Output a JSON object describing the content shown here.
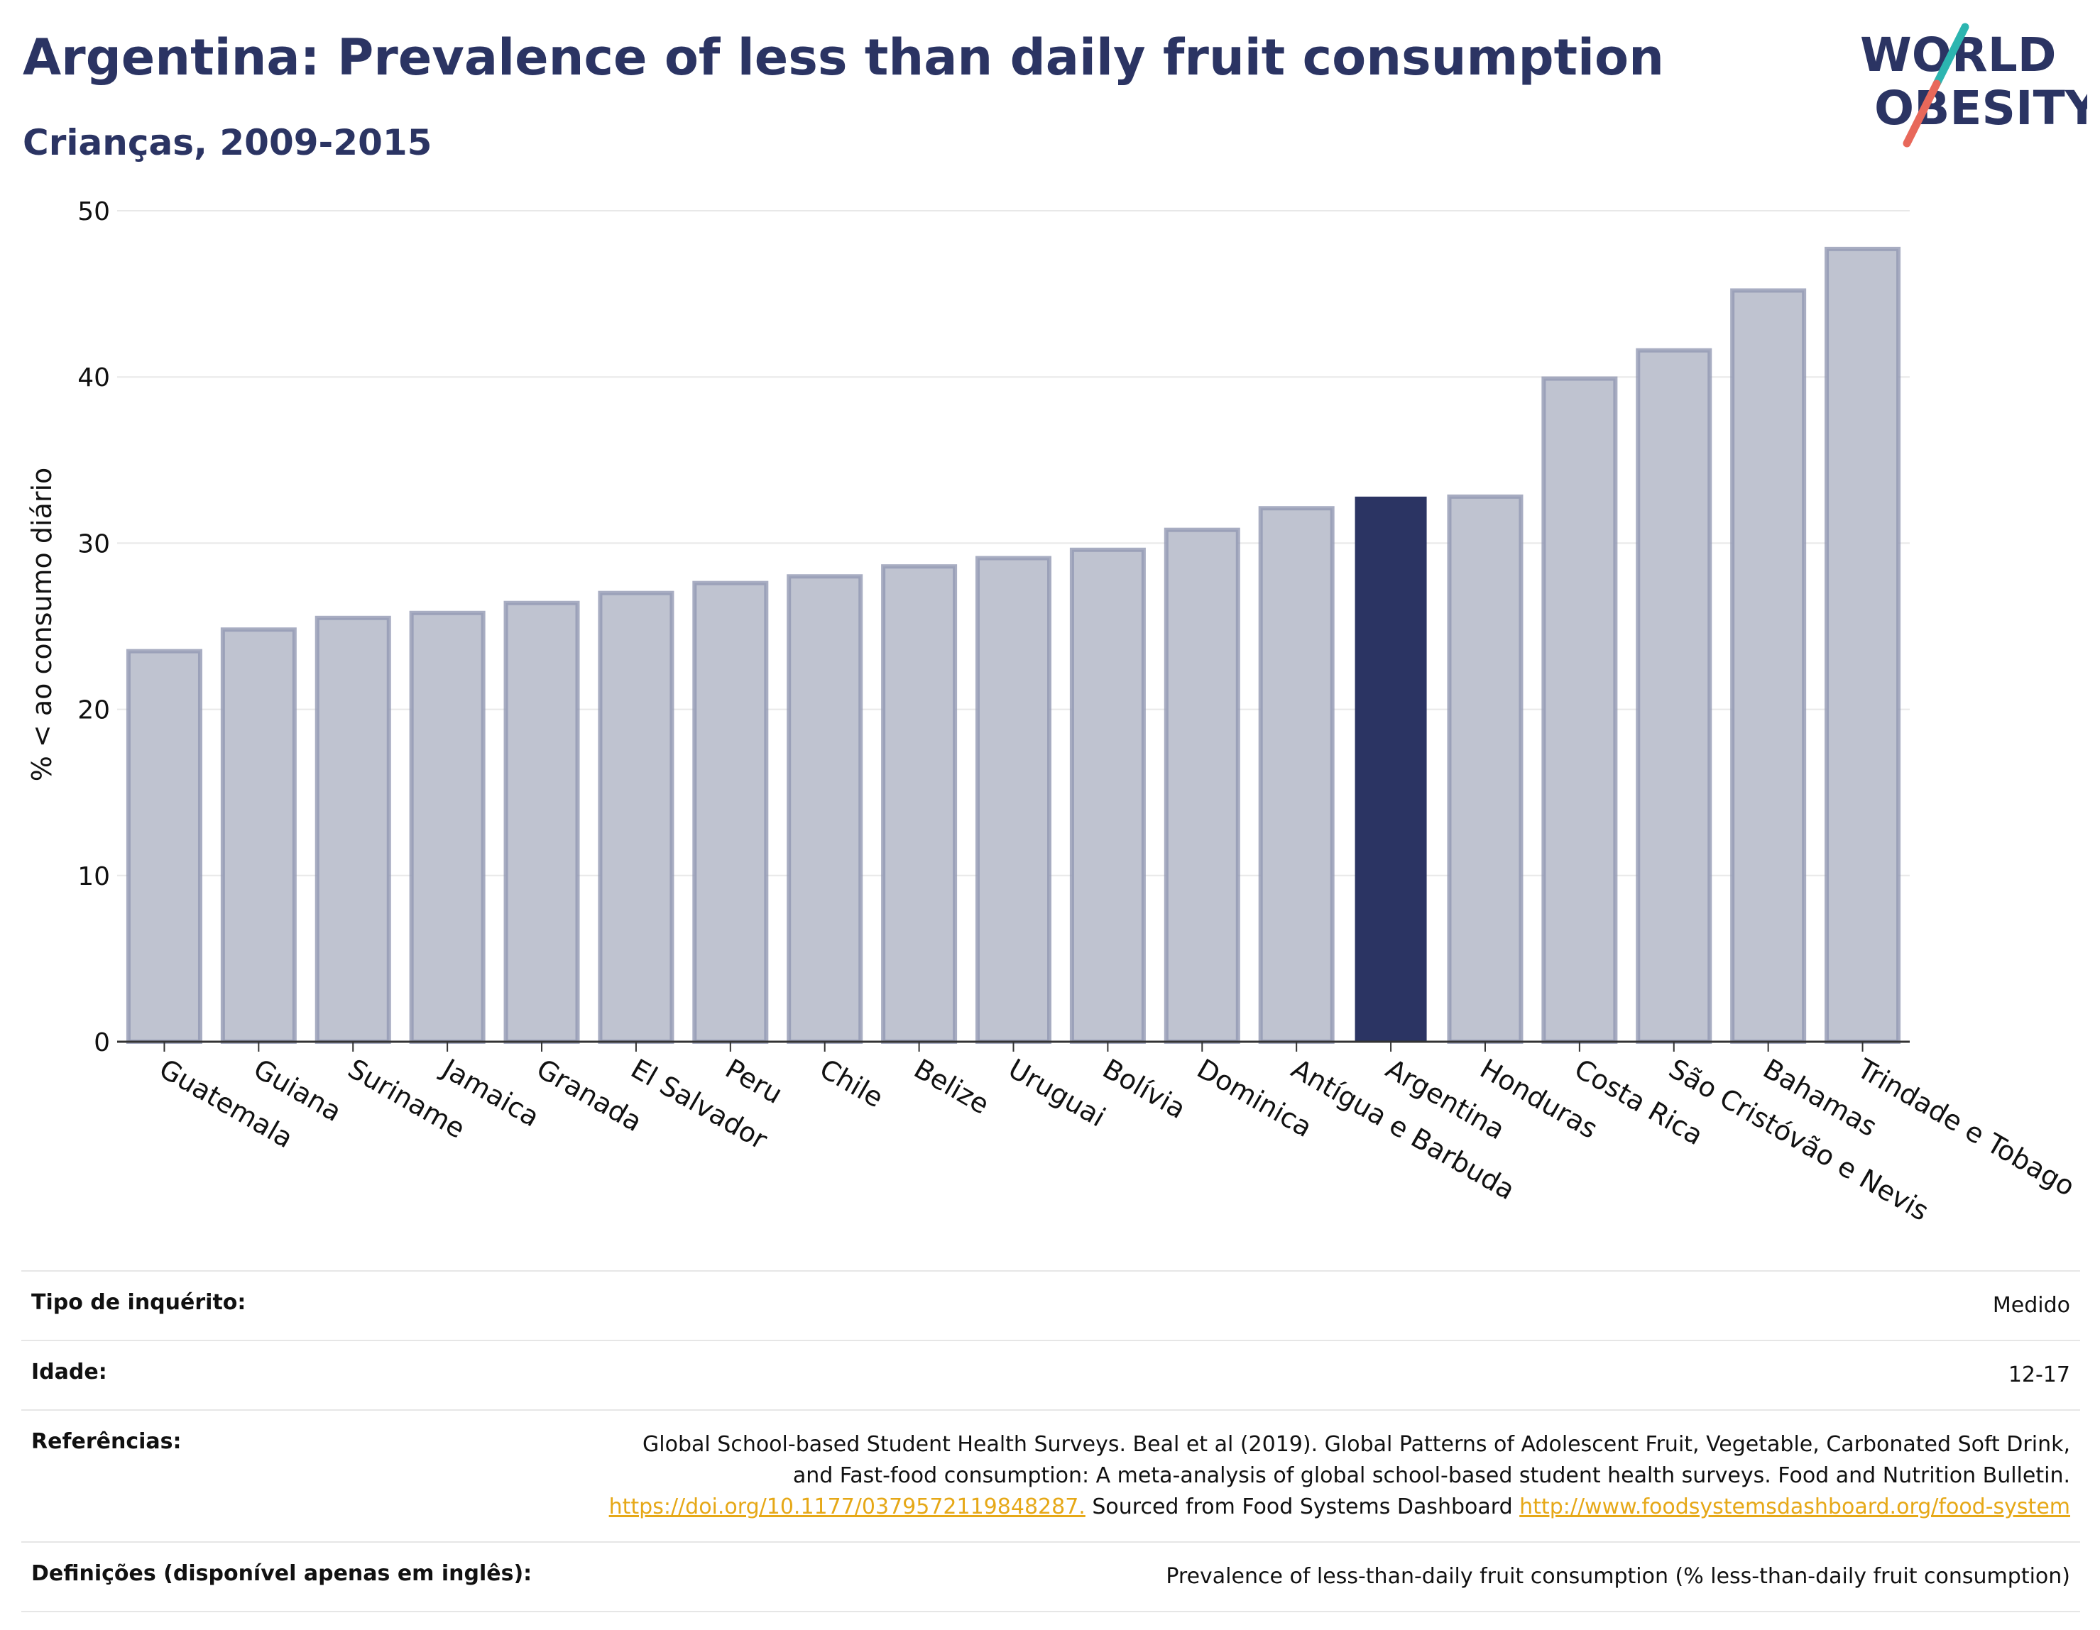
{
  "header": {
    "title": "Argentina: Prevalence of less than daily fruit consumption",
    "subtitle": "Crianças, 2009-2015"
  },
  "logo": {
    "line1": "WORLD",
    "line2": "OBESITY",
    "colors": {
      "text": "#2b3463",
      "accent_teal": "#2cb5b0",
      "accent_coral": "#e8685a"
    }
  },
  "chart_data": {
    "type": "bar",
    "ylabel": "% < ao consumo diário",
    "xlabel": "",
    "ylim": [
      0,
      50
    ],
    "yticks": [
      0,
      10,
      20,
      30,
      40,
      50
    ],
    "grid": true,
    "highlight": "Argentina",
    "colors": {
      "bar": "#bfc3d0",
      "bar_border": "#9299b3",
      "highlight": "#2b3463"
    },
    "categories": [
      "Guatemala",
      "Guiana",
      "Suriname",
      "Jamaica",
      "Granada",
      "El Salvador",
      "Peru",
      "Chile",
      "Belize",
      "Uruguai",
      "Bolívia",
      "Dominica",
      "Antígua e Barbuda",
      "Argentina",
      "Honduras",
      "Costa Rica",
      "São Cristóvão e Nevis",
      "Bahamas",
      "Trindade e Tobago"
    ],
    "values": [
      23.5,
      24.8,
      25.5,
      25.8,
      26.4,
      27.0,
      27.6,
      28.0,
      28.6,
      29.1,
      29.6,
      30.8,
      32.1,
      32.8,
      32.8,
      39.9,
      41.6,
      45.2,
      47.7
    ]
  },
  "footer": {
    "survey_label": "Tipo de inquérito:",
    "survey_value": "Medido",
    "age_label": "Idade:",
    "age_value": "12-17",
    "refs_label": "Referências:",
    "refs_line1": "Global School-based Student Health Surveys. Beal et al (2019). Global Patterns of Adolescent Fruit, Vegetable, Carbonated Soft Drink,",
    "refs_line2": "and Fast-food consumption: A meta-analysis of global school-based student health surveys. Food and Nutrition Bulletin.",
    "refs_link1": "https://doi.org/10.1177/0379572119848287.",
    "refs_mid": " Sourced from Food Systems Dashboard ",
    "refs_link2": "http://www.foodsystemsdashboard.org/food-system",
    "defs_label": "Definições (disponível apenas em inglês):",
    "defs_value": "Prevalence of less-than-daily fruit consumption (% less-than-daily fruit consumption)"
  }
}
